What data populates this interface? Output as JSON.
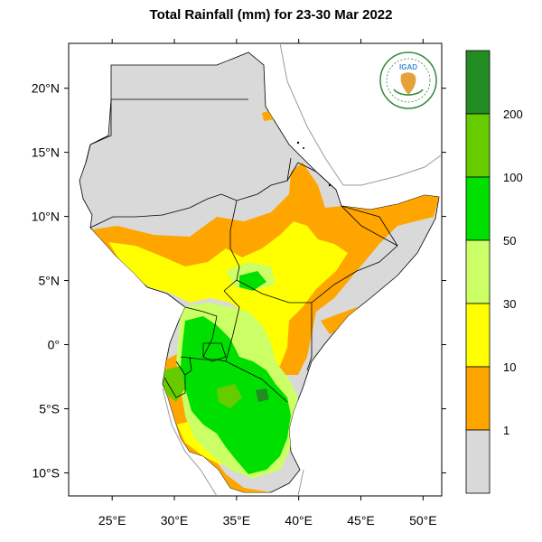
{
  "title": "Total Rainfall (mm) for 23-30 Mar 2022",
  "logo": {
    "text": "IGAD",
    "colors": {
      "ring": "#2e8b3d",
      "map": "#3b8ed4",
      "africa": "#e4a33a"
    }
  },
  "axes": {
    "x_ticks": [
      {
        "lon": 25,
        "label": "25°E"
      },
      {
        "lon": 30,
        "label": "30°E"
      },
      {
        "lon": 35,
        "label": "35°E"
      },
      {
        "lon": 40,
        "label": "40°E"
      },
      {
        "lon": 45,
        "label": "45°E"
      },
      {
        "lon": 50,
        "label": "50°E"
      }
    ],
    "y_ticks": [
      {
        "lat": 20,
        "label": "20°N"
      },
      {
        "lat": 15,
        "label": "15°N"
      },
      {
        "lat": 10,
        "label": "10°N"
      },
      {
        "lat": 5,
        "label": "5°N"
      },
      {
        "lat": 0,
        "label": "0°"
      },
      {
        "lat": -5,
        "label": "5°S"
      },
      {
        "lat": -10,
        "label": "10°S"
      }
    ],
    "lon_range": [
      21.5,
      51.5
    ],
    "lat_range": [
      -11.8,
      23.5
    ]
  },
  "colorbar": {
    "bins": [
      {
        "color": "#d9d9d9"
      },
      {
        "color": "#ffa500"
      },
      {
        "color": "#ffff00"
      },
      {
        "color": "#ccff66"
      },
      {
        "color": "#00e000"
      },
      {
        "color": "#66cc00"
      },
      {
        "color": "#228b22"
      }
    ],
    "labels": [
      "1",
      "10",
      "30",
      "50",
      "100",
      "200"
    ]
  },
  "colors": {
    "no_rain": "#d9d9d9",
    "band_1_10": "#ffa500",
    "band_10_30": "#ffff00",
    "band_30_50": "#ccff66",
    "band_50_100": "#00e000",
    "band_100_200": "#66cc00",
    "band_200_plus": "#228b22",
    "border": "#000000",
    "coast": "#888888"
  }
}
